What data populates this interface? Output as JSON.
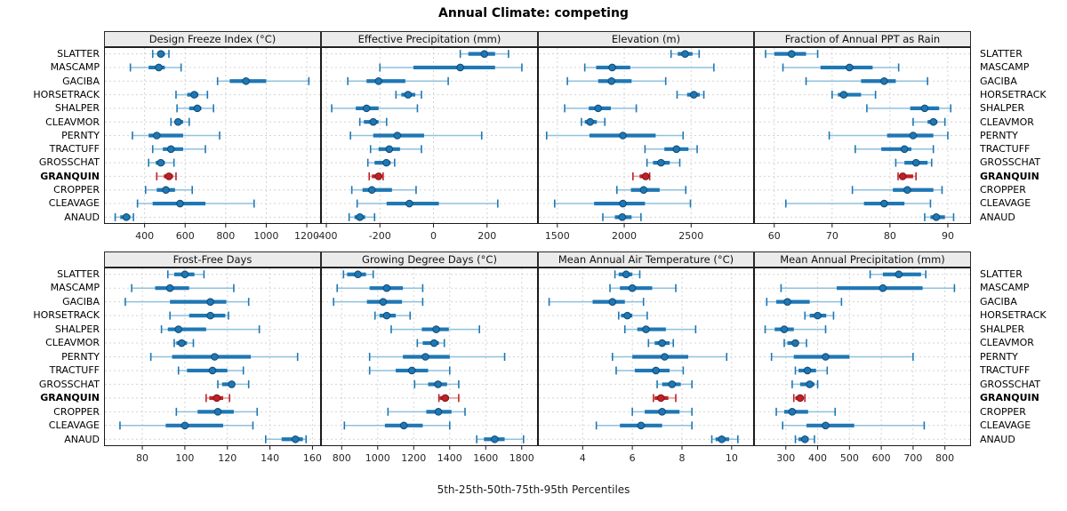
{
  "title": "Annual Climate: competing",
  "footer": "5th-25th-50th-75th-95th Percentiles",
  "sites": [
    "SLATTER",
    "MASCAMP",
    "GACIBA",
    "HORSETRACK",
    "SHALPER",
    "CLEAVMOR",
    "PERNTY",
    "TRACTUFF",
    "GROSSCHAT",
    "GRANQUIN",
    "CROPPER",
    "CLEAVAGE",
    "ANAUD"
  ],
  "highlight_site": "GRANQUIN",
  "colors": {
    "normal": "#1f77b4",
    "normal_light": "#8fc1de",
    "normal_edge": "#0d4a73",
    "highlight": "#bf2126",
    "highlight_light": "#de9c9b",
    "highlight_edge": "#7f1416",
    "grid": "#d4d4d4",
    "header_bg": "#ebebeb",
    "border": "#1a1a1a"
  },
  "chart_data": [
    {
      "type": "interval",
      "title": "Design Freeze Index (°C)",
      "percentile_levels": [
        5,
        25,
        50,
        75,
        95
      ],
      "xlim": [
        200,
        1270
      ],
      "ticks": [
        400,
        600,
        800,
        1000,
        1200
      ],
      "values": [
        [
          440,
          465,
          480,
          500,
          520
        ],
        [
          330,
          420,
          470,
          500,
          580
        ],
        [
          760,
          820,
          900,
          1000,
          1210
        ],
        [
          555,
          610,
          645,
          665,
          710
        ],
        [
          560,
          620,
          660,
          680,
          740
        ],
        [
          530,
          550,
          565,
          590,
          620
        ],
        [
          340,
          420,
          460,
          590,
          770
        ],
        [
          440,
          490,
          530,
          590,
          700
        ],
        [
          420,
          455,
          480,
          500,
          545
        ],
        [
          460,
          495,
          520,
          540,
          555
        ],
        [
          405,
          460,
          505,
          550,
          635
        ],
        [
          365,
          440,
          575,
          700,
          940
        ],
        [
          255,
          280,
          310,
          330,
          345
        ]
      ]
    },
    {
      "type": "interval",
      "title": "Effective Precipitation (mm)",
      "percentile_levels": [
        5,
        25,
        50,
        75,
        95
      ],
      "xlim": [
        -420,
        390
      ],
      "ticks": [
        -400,
        -200,
        0,
        200
      ],
      "values": [
        [
          100,
          130,
          190,
          230,
          280
        ],
        [
          -200,
          -75,
          100,
          230,
          330
        ],
        [
          -320,
          -250,
          -205,
          -105,
          55
        ],
        [
          -140,
          -120,
          -95,
          -68,
          -45
        ],
        [
          -380,
          -290,
          -250,
          -205,
          -60
        ],
        [
          -275,
          -260,
          -225,
          -205,
          -175
        ],
        [
          -310,
          -225,
          -135,
          -35,
          180
        ],
        [
          -235,
          -205,
          -165,
          -125,
          -45
        ],
        [
          -245,
          -220,
          -176,
          -160,
          -145
        ],
        [
          -240,
          -230,
          -205,
          -195,
          -188
        ],
        [
          -305,
          -265,
          -230,
          -155,
          -65
        ],
        [
          -285,
          -175,
          -90,
          20,
          240
        ],
        [
          -315,
          -295,
          -275,
          -255,
          -220
        ]
      ]
    },
    {
      "type": "interval",
      "title": "Elevation (m)",
      "percentile_levels": [
        5,
        25,
        50,
        75,
        95
      ],
      "xlim": [
        1355,
        2970
      ],
      "ticks": [
        1500,
        2000,
        2500
      ],
      "values": [
        [
          2350,
          2400,
          2455,
          2510,
          2560
        ],
        [
          1705,
          1790,
          1910,
          2045,
          2670
        ],
        [
          1575,
          1805,
          1905,
          2055,
          2310
        ],
        [
          2395,
          2470,
          2520,
          2565,
          2595
        ],
        [
          1555,
          1735,
          1805,
          1900,
          2090
        ],
        [
          1680,
          1705,
          1745,
          1795,
          1855
        ],
        [
          1420,
          1740,
          1990,
          2235,
          2440
        ],
        [
          2155,
          2300,
          2390,
          2480,
          2545
        ],
        [
          2170,
          2215,
          2275,
          2340,
          2415
        ],
        [
          2065,
          2115,
          2160,
          2180,
          2190
        ],
        [
          1945,
          2050,
          2145,
          2265,
          2460
        ],
        [
          1480,
          1775,
          1990,
          2155,
          2495
        ],
        [
          1840,
          1930,
          1985,
          2055,
          2125
        ]
      ]
    },
    {
      "type": "interval",
      "title": "Fraction of Annual PPT as Rain",
      "percentile_levels": [
        5,
        25,
        50,
        75,
        95
      ],
      "xlim": [
        56.5,
        94
      ],
      "ticks": [
        60,
        70,
        80,
        90
      ],
      "values": [
        [
          58.5,
          60,
          63,
          65.5,
          67.5
        ],
        [
          61.5,
          68,
          73,
          77,
          81.5
        ],
        [
          65.5,
          75,
          79,
          81,
          86.5
        ],
        [
          70,
          71,
          72,
          75,
          77.5
        ],
        [
          76,
          83.5,
          86,
          88.5,
          90.5
        ],
        [
          84,
          86.5,
          87.5,
          88.2,
          89.5
        ],
        [
          69.5,
          79.5,
          84,
          87.5,
          90
        ],
        [
          74,
          78.5,
          82.5,
          83.7,
          87.5
        ],
        [
          81,
          82.5,
          84.5,
          86.5,
          87.2
        ],
        [
          81.4,
          81.7,
          82.2,
          84,
          84.5
        ],
        [
          73.5,
          80.5,
          83,
          87.5,
          89
        ],
        [
          62,
          75.5,
          79,
          82.5,
          87
        ],
        [
          86,
          87,
          88,
          89.5,
          91
        ]
      ]
    },
    {
      "type": "interval",
      "title": "Frost-Free Days",
      "percentile_levels": [
        5,
        25,
        50,
        75,
        95
      ],
      "xlim": [
        62,
        164
      ],
      "ticks": [
        80,
        100,
        120,
        140,
        160
      ],
      "values": [
        [
          92,
          95,
          100,
          104.5,
          109
        ],
        [
          75,
          86,
          93,
          102,
          123
        ],
        [
          72,
          93,
          112,
          119.5,
          130
        ],
        [
          93,
          102,
          112,
          119,
          120.5
        ],
        [
          89,
          92,
          97,
          110,
          135
        ],
        [
          95,
          96,
          98.5,
          101,
          104
        ],
        [
          84,
          94,
          114,
          131,
          153
        ],
        [
          97,
          101,
          113,
          120,
          127.5
        ],
        [
          115.5,
          117.5,
          122,
          123,
          130
        ],
        [
          110,
          111.5,
          115,
          118,
          121
        ],
        [
          96,
          106,
          115.5,
          123,
          134
        ],
        [
          69.5,
          91,
          100,
          118,
          132
        ],
        [
          138,
          145.5,
          152,
          155.5,
          157
        ]
      ]
    },
    {
      "type": "interval",
      "title": "Growing Degree Days (°C)",
      "percentile_levels": [
        5,
        25,
        50,
        75,
        95
      ],
      "xlim": [
        685,
        1890
      ],
      "ticks": [
        800,
        1000,
        1200,
        1400,
        1600,
        1800
      ],
      "values": [
        [
          810,
          830,
          890,
          935,
          975
        ],
        [
          775,
          955,
          1050,
          1140,
          1250
        ],
        [
          755,
          940,
          1030,
          1135,
          1250
        ],
        [
          985,
          1010,
          1050,
          1100,
          1180
        ],
        [
          1075,
          1245,
          1325,
          1395,
          1565
        ],
        [
          1220,
          1250,
          1313,
          1340,
          1370
        ],
        [
          955,
          1140,
          1265,
          1400,
          1705
        ],
        [
          955,
          1100,
          1190,
          1280,
          1400
        ],
        [
          1205,
          1280,
          1335,
          1385,
          1450
        ],
        [
          1340,
          1345,
          1375,
          1395,
          1450
        ],
        [
          1057,
          1270,
          1337,
          1410,
          1485
        ],
        [
          815,
          1040,
          1145,
          1250,
          1400
        ],
        [
          1550,
          1590,
          1650,
          1705,
          1810
        ]
      ]
    },
    {
      "type": "interval",
      "title": "Mean Annual Air Temperature (°C)",
      "percentile_levels": [
        5,
        25,
        50,
        75,
        95
      ],
      "xlim": [
        2.2,
        10.9
      ],
      "ticks": [
        4,
        6,
        8,
        10
      ],
      "values": [
        [
          5.3,
          5.45,
          5.75,
          6.0,
          6.3
        ],
        [
          5.1,
          5.5,
          6.0,
          6.8,
          7.75
        ],
        [
          2.65,
          4.4,
          5.2,
          5.7,
          6.45
        ],
        [
          5.45,
          5.55,
          5.8,
          6.0,
          6.6
        ],
        [
          5.7,
          6.2,
          6.55,
          7.35,
          8.55
        ],
        [
          6.65,
          6.9,
          7.2,
          7.5,
          7.65
        ],
        [
          5.2,
          6.0,
          7.3,
          8.25,
          9.8
        ],
        [
          5.35,
          6.1,
          6.95,
          7.5,
          8.05
        ],
        [
          7.0,
          7.2,
          7.6,
          7.95,
          8.4
        ],
        [
          6.85,
          6.9,
          7.15,
          7.45,
          7.75
        ],
        [
          6.0,
          6.5,
          7.2,
          7.9,
          8.4
        ],
        [
          4.55,
          5.5,
          6.35,
          7.2,
          8.4
        ],
        [
          9.2,
          9.35,
          9.6,
          9.9,
          10.25
        ]
      ]
    },
    {
      "type": "interval",
      "title": "Mean Annual Precipitation (mm)",
      "percentile_levels": [
        5,
        25,
        50,
        75,
        95
      ],
      "xlim": [
        200,
        882
      ],
      "ticks": [
        300,
        400,
        500,
        600,
        700,
        800
      ],
      "values": [
        [
          565,
          605,
          655,
          725,
          740
        ],
        [
          285,
          460,
          605,
          730,
          830
        ],
        [
          240,
          270,
          305,
          375,
          475
        ],
        [
          360,
          375,
          400,
          427,
          450
        ],
        [
          235,
          265,
          295,
          325,
          425
        ],
        [
          295,
          305,
          330,
          340,
          365
        ],
        [
          255,
          325,
          425,
          500,
          700
        ],
        [
          330,
          340,
          368,
          395,
          430
        ],
        [
          320,
          345,
          375,
          390,
          400
        ],
        [
          325,
          330,
          345,
          355,
          360
        ],
        [
          270,
          295,
          320,
          370,
          455
        ],
        [
          290,
          365,
          425,
          515,
          735
        ],
        [
          330,
          340,
          360,
          372,
          390
        ]
      ]
    }
  ]
}
